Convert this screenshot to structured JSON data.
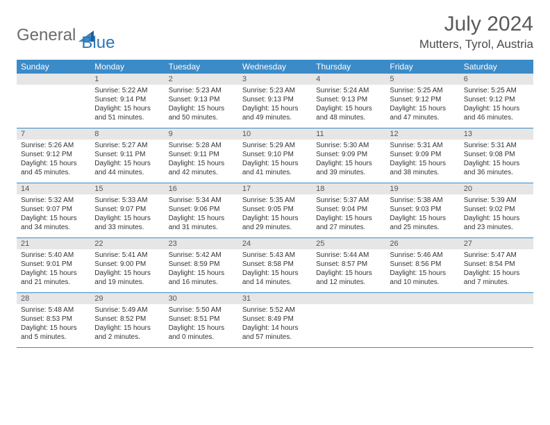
{
  "logo": {
    "part1": "General",
    "part2": "Blue"
  },
  "title": "July 2024",
  "location": "Mutters, Tyrol, Austria",
  "colors": {
    "header_bg": "#3b8bc8",
    "header_text": "#ffffff",
    "daynum_bg": "#e6e6e6",
    "logo_gray": "#6b6b6b",
    "logo_blue": "#2e75b6",
    "border": "#3b8bc8"
  },
  "weekdays": [
    "Sunday",
    "Monday",
    "Tuesday",
    "Wednesday",
    "Thursday",
    "Friday",
    "Saturday"
  ],
  "weeks": [
    [
      {
        "n": "",
        "sr": "",
        "ss": "",
        "dl": ""
      },
      {
        "n": "1",
        "sr": "5:22 AM",
        "ss": "9:14 PM",
        "dl": "15 hours and 51 minutes."
      },
      {
        "n": "2",
        "sr": "5:23 AM",
        "ss": "9:13 PM",
        "dl": "15 hours and 50 minutes."
      },
      {
        "n": "3",
        "sr": "5:23 AM",
        "ss": "9:13 PM",
        "dl": "15 hours and 49 minutes."
      },
      {
        "n": "4",
        "sr": "5:24 AM",
        "ss": "9:13 PM",
        "dl": "15 hours and 48 minutes."
      },
      {
        "n": "5",
        "sr": "5:25 AM",
        "ss": "9:12 PM",
        "dl": "15 hours and 47 minutes."
      },
      {
        "n": "6",
        "sr": "5:25 AM",
        "ss": "9:12 PM",
        "dl": "15 hours and 46 minutes."
      }
    ],
    [
      {
        "n": "7",
        "sr": "5:26 AM",
        "ss": "9:12 PM",
        "dl": "15 hours and 45 minutes."
      },
      {
        "n": "8",
        "sr": "5:27 AM",
        "ss": "9:11 PM",
        "dl": "15 hours and 44 minutes."
      },
      {
        "n": "9",
        "sr": "5:28 AM",
        "ss": "9:11 PM",
        "dl": "15 hours and 42 minutes."
      },
      {
        "n": "10",
        "sr": "5:29 AM",
        "ss": "9:10 PM",
        "dl": "15 hours and 41 minutes."
      },
      {
        "n": "11",
        "sr": "5:30 AM",
        "ss": "9:09 PM",
        "dl": "15 hours and 39 minutes."
      },
      {
        "n": "12",
        "sr": "5:31 AM",
        "ss": "9:09 PM",
        "dl": "15 hours and 38 minutes."
      },
      {
        "n": "13",
        "sr": "5:31 AM",
        "ss": "9:08 PM",
        "dl": "15 hours and 36 minutes."
      }
    ],
    [
      {
        "n": "14",
        "sr": "5:32 AM",
        "ss": "9:07 PM",
        "dl": "15 hours and 34 minutes."
      },
      {
        "n": "15",
        "sr": "5:33 AM",
        "ss": "9:07 PM",
        "dl": "15 hours and 33 minutes."
      },
      {
        "n": "16",
        "sr": "5:34 AM",
        "ss": "9:06 PM",
        "dl": "15 hours and 31 minutes."
      },
      {
        "n": "17",
        "sr": "5:35 AM",
        "ss": "9:05 PM",
        "dl": "15 hours and 29 minutes."
      },
      {
        "n": "18",
        "sr": "5:37 AM",
        "ss": "9:04 PM",
        "dl": "15 hours and 27 minutes."
      },
      {
        "n": "19",
        "sr": "5:38 AM",
        "ss": "9:03 PM",
        "dl": "15 hours and 25 minutes."
      },
      {
        "n": "20",
        "sr": "5:39 AM",
        "ss": "9:02 PM",
        "dl": "15 hours and 23 minutes."
      }
    ],
    [
      {
        "n": "21",
        "sr": "5:40 AM",
        "ss": "9:01 PM",
        "dl": "15 hours and 21 minutes."
      },
      {
        "n": "22",
        "sr": "5:41 AM",
        "ss": "9:00 PM",
        "dl": "15 hours and 19 minutes."
      },
      {
        "n": "23",
        "sr": "5:42 AM",
        "ss": "8:59 PM",
        "dl": "15 hours and 16 minutes."
      },
      {
        "n": "24",
        "sr": "5:43 AM",
        "ss": "8:58 PM",
        "dl": "15 hours and 14 minutes."
      },
      {
        "n": "25",
        "sr": "5:44 AM",
        "ss": "8:57 PM",
        "dl": "15 hours and 12 minutes."
      },
      {
        "n": "26",
        "sr": "5:46 AM",
        "ss": "8:56 PM",
        "dl": "15 hours and 10 minutes."
      },
      {
        "n": "27",
        "sr": "5:47 AM",
        "ss": "8:54 PM",
        "dl": "15 hours and 7 minutes."
      }
    ],
    [
      {
        "n": "28",
        "sr": "5:48 AM",
        "ss": "8:53 PM",
        "dl": "15 hours and 5 minutes."
      },
      {
        "n": "29",
        "sr": "5:49 AM",
        "ss": "8:52 PM",
        "dl": "15 hours and 2 minutes."
      },
      {
        "n": "30",
        "sr": "5:50 AM",
        "ss": "8:51 PM",
        "dl": "15 hours and 0 minutes."
      },
      {
        "n": "31",
        "sr": "5:52 AM",
        "ss": "8:49 PM",
        "dl": "14 hours and 57 minutes."
      },
      {
        "n": "",
        "sr": "",
        "ss": "",
        "dl": ""
      },
      {
        "n": "",
        "sr": "",
        "ss": "",
        "dl": ""
      },
      {
        "n": "",
        "sr": "",
        "ss": "",
        "dl": ""
      }
    ]
  ],
  "labels": {
    "sunrise": "Sunrise:",
    "sunset": "Sunset:",
    "daylight": "Daylight:"
  }
}
